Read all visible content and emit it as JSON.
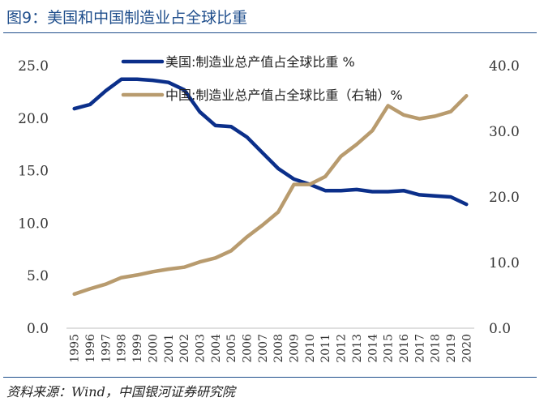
{
  "figure": {
    "title": "图9：美国和中国制造业占全球比重",
    "source": "资料来源：Wind，中国银河证券研究院"
  },
  "colors": {
    "title": "#1f4e8c",
    "us_series": "#0b2f8a",
    "cn_series": "#b89b6e",
    "axis": "#bfbfbf"
  },
  "chart_data": {
    "type": "line",
    "x": [
      "1995",
      "1996",
      "1997",
      "1998",
      "1999",
      "2000",
      "2001",
      "2002",
      "2003",
      "2004",
      "2005",
      "2006",
      "2007",
      "2008",
      "2009",
      "2010",
      "2011",
      "2012",
      "2013",
      "2014",
      "2015",
      "2016",
      "2017",
      "2018",
      "2019",
      "2020"
    ],
    "series": [
      {
        "name": "美国:制造业总产值占全球比重 %",
        "axis": "left",
        "values": [
          20.9,
          21.3,
          22.6,
          23.7,
          23.7,
          23.6,
          23.4,
          22.7,
          20.6,
          19.3,
          19.2,
          18.2,
          16.7,
          15.2,
          14.2,
          13.7,
          13.1,
          13.1,
          13.2,
          13.0,
          13.0,
          13.1,
          12.7,
          12.6,
          12.5,
          11.8
        ]
      },
      {
        "name": "中国:制造业总产值占全球比重（右轴）%",
        "axis": "right",
        "values": [
          5.2,
          6.0,
          6.7,
          7.7,
          8.1,
          8.6,
          9.0,
          9.3,
          10.1,
          10.7,
          11.8,
          13.9,
          15.7,
          17.7,
          21.9,
          21.9,
          23.1,
          26.2,
          28.0,
          30.1,
          33.9,
          32.5,
          31.9,
          32.3,
          33.0,
          35.4
        ]
      }
    ],
    "y_left": {
      "ylim": [
        0,
        25
      ],
      "ticks": [
        "0.0",
        "5.0",
        "10.0",
        "15.0",
        "20.0",
        "25.0"
      ]
    },
    "y_right": {
      "ylim": [
        0,
        40
      ],
      "ticks": [
        "0.0",
        "10.0",
        "20.0",
        "30.0",
        "40.0"
      ]
    },
    "grid": false,
    "legend_position": "top-center"
  }
}
